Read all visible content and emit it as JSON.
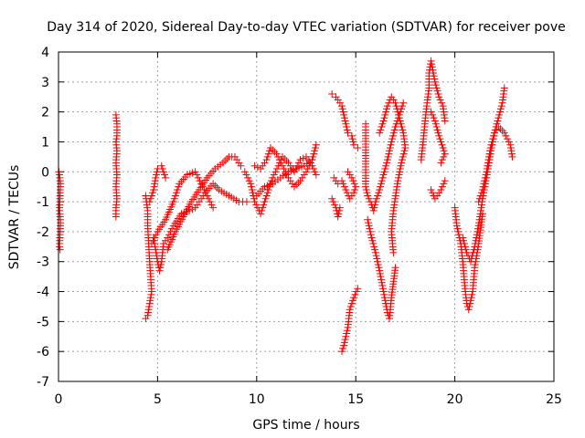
{
  "chart_data": {
    "type": "scatter",
    "title": "Day 314 of 2020, Sidereal Day-to-day VTEC variation (SDTVAR) for receiver pove",
    "xlabel": "GPS time / hours",
    "ylabel": "SDTVAR / TECUs",
    "xlim": [
      0,
      25
    ],
    "ylim": [
      -7,
      4
    ],
    "x_ticks": [
      "0",
      "5",
      "10",
      "15",
      "20",
      "25"
    ],
    "y_ticks": [
      "-7",
      "-6",
      "-5",
      "-4",
      "-3",
      "-2",
      "-1",
      "0",
      "1",
      "2",
      "3",
      "4"
    ],
    "grid": true,
    "legend": "none",
    "marker": "+",
    "color": "#ff0000",
    "series": [
      {
        "points": [
          [
            0.02,
            0.0
          ],
          [
            0.05,
            -0.1
          ],
          [
            0.08,
            -0.3
          ],
          [
            0.1,
            -0.4
          ],
          [
            0.05,
            -1.3
          ],
          [
            0.08,
            -1.5
          ],
          [
            0.1,
            -1.7
          ],
          [
            0.05,
            -2.5
          ],
          [
            0.08,
            -2.6
          ]
        ]
      },
      {
        "points": [
          [
            2.9,
            1.9
          ],
          [
            2.95,
            1.6
          ],
          [
            2.95,
            1.2
          ],
          [
            2.9,
            1.0
          ],
          [
            2.95,
            0.7
          ],
          [
            2.9,
            0.3
          ],
          [
            2.95,
            -0.1
          ],
          [
            2.9,
            -0.5
          ],
          [
            2.95,
            -0.9
          ],
          [
            2.9,
            -1.2
          ],
          [
            2.9,
            -1.5
          ]
        ]
      },
      {
        "points": [
          [
            4.4,
            -0.8
          ],
          [
            4.5,
            -1.3
          ],
          [
            4.5,
            -1.8
          ],
          [
            4.55,
            -2.4
          ],
          [
            4.6,
            -3.0
          ],
          [
            4.65,
            -3.5
          ],
          [
            4.7,
            -4.0
          ],
          [
            4.6,
            -4.4
          ],
          [
            4.5,
            -4.8
          ],
          [
            4.4,
            -4.9
          ]
        ]
      },
      {
        "points": [
          [
            4.8,
            -2.2
          ],
          [
            4.9,
            -2.6
          ],
          [
            5.0,
            -3.0
          ],
          [
            5.1,
            -3.3
          ],
          [
            5.2,
            -3.0
          ],
          [
            5.3,
            -2.4
          ],
          [
            5.5,
            -2.2
          ],
          [
            5.8,
            -1.8
          ],
          [
            6.2,
            -1.4
          ],
          [
            6.6,
            -1.3
          ],
          [
            6.9,
            -1.2
          ],
          [
            7.1,
            -1.0
          ],
          [
            7.4,
            -0.7
          ],
          [
            7.8,
            -0.4
          ],
          [
            8.1,
            -0.6
          ],
          [
            8.6,
            -0.8
          ],
          [
            9.1,
            -1.0
          ],
          [
            9.5,
            -1.0
          ]
        ]
      },
      {
        "points": [
          [
            4.6,
            -1.0
          ],
          [
            4.8,
            -0.6
          ],
          [
            4.9,
            -0.2
          ],
          [
            5.0,
            0.1
          ],
          [
            5.2,
            0.2
          ],
          [
            5.3,
            0.0
          ],
          [
            5.4,
            -0.2
          ]
        ]
      },
      {
        "points": [
          [
            4.7,
            -2.4
          ],
          [
            5.0,
            -2.0
          ],
          [
            5.4,
            -1.6
          ],
          [
            5.8,
            -1.0
          ],
          [
            6.1,
            -0.4
          ],
          [
            6.5,
            -0.1
          ],
          [
            6.9,
            0.0
          ],
          [
            7.2,
            -0.4
          ],
          [
            7.5,
            -0.8
          ],
          [
            7.8,
            -1.2
          ]
        ]
      },
      {
        "points": [
          [
            5.5,
            -2.6
          ],
          [
            5.9,
            -2.0
          ],
          [
            6.3,
            -1.5
          ],
          [
            6.7,
            -1.0
          ],
          [
            7.1,
            -0.6
          ],
          [
            7.5,
            -0.2
          ],
          [
            7.9,
            0.1
          ],
          [
            8.3,
            0.3
          ],
          [
            8.6,
            0.5
          ],
          [
            8.9,
            0.5
          ],
          [
            9.2,
            0.2
          ]
        ]
      },
      {
        "points": [
          [
            9.4,
            0.0
          ],
          [
            9.7,
            -0.4
          ],
          [
            9.9,
            -1.0
          ],
          [
            10.2,
            -1.4
          ],
          [
            10.4,
            -1.0
          ],
          [
            10.6,
            -0.6
          ],
          [
            10.8,
            -0.2
          ],
          [
            11.1,
            0.2
          ],
          [
            11.3,
            0.5
          ],
          [
            11.6,
            0.3
          ],
          [
            11.9,
            0.0
          ],
          [
            12.2,
            0.4
          ],
          [
            12.5,
            0.5
          ],
          [
            12.8,
            0.2
          ],
          [
            13.0,
            -0.1
          ]
        ]
      },
      {
        "points": [
          [
            9.9,
            0.2
          ],
          [
            10.2,
            0.1
          ],
          [
            10.5,
            0.4
          ],
          [
            10.7,
            0.8
          ],
          [
            11.0,
            0.6
          ],
          [
            11.3,
            0.2
          ],
          [
            11.6,
            -0.2
          ],
          [
            11.9,
            -0.5
          ],
          [
            12.2,
            -0.3
          ],
          [
            12.5,
            0.0
          ],
          [
            12.8,
            0.4
          ],
          [
            13.0,
            0.9
          ]
        ]
      },
      {
        "points": [
          [
            10.0,
            -0.8
          ],
          [
            10.4,
            -0.5
          ],
          [
            10.8,
            -0.4
          ],
          [
            11.2,
            -0.2
          ],
          [
            11.6,
            0.0
          ],
          [
            12.0,
            0.1
          ],
          [
            12.4,
            0.2
          ],
          [
            12.8,
            0.4
          ]
        ]
      },
      {
        "points": [
          [
            13.8,
            2.6
          ],
          [
            14.0,
            2.5
          ],
          [
            14.3,
            2.2
          ],
          [
            14.5,
            1.6
          ],
          [
            14.6,
            1.3
          ],
          [
            14.8,
            1.2
          ],
          [
            14.9,
            0.9
          ],
          [
            15.1,
            0.8
          ]
        ]
      },
      {
        "points": [
          [
            13.9,
            -0.2
          ],
          [
            14.1,
            -0.4
          ],
          [
            14.3,
            -0.3
          ],
          [
            14.5,
            -0.6
          ],
          [
            14.7,
            -0.9
          ],
          [
            14.9,
            -0.7
          ],
          [
            15.0,
            -0.5
          ],
          [
            14.8,
            -0.2
          ],
          [
            14.6,
            0.0
          ]
        ]
      },
      {
        "points": [
          [
            13.8,
            -0.9
          ],
          [
            14.0,
            -1.2
          ],
          [
            14.1,
            -1.5
          ],
          [
            14.2,
            -1.2
          ]
        ]
      },
      {
        "points": [
          [
            14.3,
            -6.0
          ],
          [
            14.4,
            -5.8
          ],
          [
            14.6,
            -5.2
          ],
          [
            14.7,
            -4.6
          ],
          [
            14.9,
            -4.2
          ],
          [
            15.1,
            -3.9
          ]
        ]
      },
      {
        "points": [
          [
            15.5,
            1.6
          ],
          [
            15.5,
            1.3
          ],
          [
            15.5,
            -0.5
          ],
          [
            15.6,
            -0.8
          ],
          [
            15.8,
            -1.1
          ],
          [
            15.9,
            -1.3
          ],
          [
            16.0,
            -1.0
          ],
          [
            16.2,
            -0.6
          ],
          [
            16.4,
            -0.1
          ],
          [
            16.6,
            0.4
          ],
          [
            16.8,
            1.0
          ],
          [
            17.0,
            1.5
          ],
          [
            17.2,
            1.9
          ],
          [
            17.4,
            2.3
          ]
        ]
      },
      {
        "points": [
          [
            15.6,
            -1.6
          ],
          [
            15.8,
            -2.2
          ],
          [
            16.0,
            -2.7
          ],
          [
            16.2,
            -3.3
          ],
          [
            16.4,
            -4.0
          ],
          [
            16.6,
            -4.7
          ],
          [
            16.7,
            -4.9
          ],
          [
            16.8,
            -4.2
          ],
          [
            17.0,
            -3.2
          ]
        ]
      },
      {
        "points": [
          [
            16.2,
            1.3
          ],
          [
            16.4,
            1.7
          ],
          [
            16.6,
            2.2
          ],
          [
            16.8,
            2.5
          ],
          [
            17.0,
            2.3
          ],
          [
            17.2,
            1.8
          ],
          [
            17.4,
            1.3
          ],
          [
            17.5,
            0.8
          ],
          [
            17.3,
            0.3
          ],
          [
            17.1,
            -0.4
          ],
          [
            16.9,
            -1.3
          ],
          [
            16.8,
            -2.0
          ],
          [
            16.9,
            -2.7
          ]
        ]
      },
      {
        "points": [
          [
            18.3,
            0.4
          ],
          [
            18.4,
            1.0
          ],
          [
            18.5,
            1.7
          ],
          [
            18.6,
            2.3
          ],
          [
            18.7,
            2.8
          ],
          [
            18.7,
            3.3
          ],
          [
            18.8,
            3.7
          ],
          [
            19.0,
            3.0
          ],
          [
            19.2,
            2.5
          ],
          [
            19.4,
            2.2
          ],
          [
            19.5,
            1.7
          ]
        ]
      },
      {
        "points": [
          [
            18.8,
            2.0
          ],
          [
            19.0,
            1.7
          ],
          [
            19.2,
            1.2
          ],
          [
            19.4,
            0.8
          ],
          [
            19.5,
            0.6
          ],
          [
            19.3,
            0.3
          ]
        ]
      },
      {
        "points": [
          [
            18.8,
            -0.6
          ],
          [
            19.0,
            -0.9
          ],
          [
            19.3,
            -0.6
          ],
          [
            19.5,
            -0.3
          ]
        ]
      },
      {
        "points": [
          [
            20.0,
            -1.2
          ],
          [
            20.1,
            -1.8
          ],
          [
            20.3,
            -2.4
          ],
          [
            20.4,
            -3.0
          ],
          [
            20.5,
            -3.8
          ],
          [
            20.6,
            -4.4
          ],
          [
            20.7,
            -4.6
          ],
          [
            20.9,
            -4.0
          ],
          [
            21.0,
            -3.2
          ],
          [
            21.2,
            -2.4
          ],
          [
            21.4,
            -1.4
          ]
        ]
      },
      {
        "points": [
          [
            20.4,
            -2.2
          ],
          [
            20.6,
            -2.7
          ],
          [
            20.8,
            -3.0
          ],
          [
            21.0,
            -2.5
          ],
          [
            21.2,
            -1.8
          ],
          [
            21.4,
            -0.9
          ],
          [
            21.6,
            -0.2
          ],
          [
            21.8,
            0.6
          ],
          [
            22.0,
            1.3
          ],
          [
            22.2,
            1.8
          ],
          [
            22.4,
            2.3
          ],
          [
            22.5,
            2.8
          ]
        ]
      },
      {
        "points": [
          [
            21.2,
            -1.0
          ],
          [
            21.4,
            -0.6
          ],
          [
            21.6,
            0.0
          ],
          [
            21.8,
            0.8
          ],
          [
            22.0,
            1.3
          ],
          [
            22.2,
            1.5
          ],
          [
            22.5,
            1.3
          ],
          [
            22.8,
            0.9
          ],
          [
            22.9,
            0.5
          ]
        ]
      }
    ]
  }
}
